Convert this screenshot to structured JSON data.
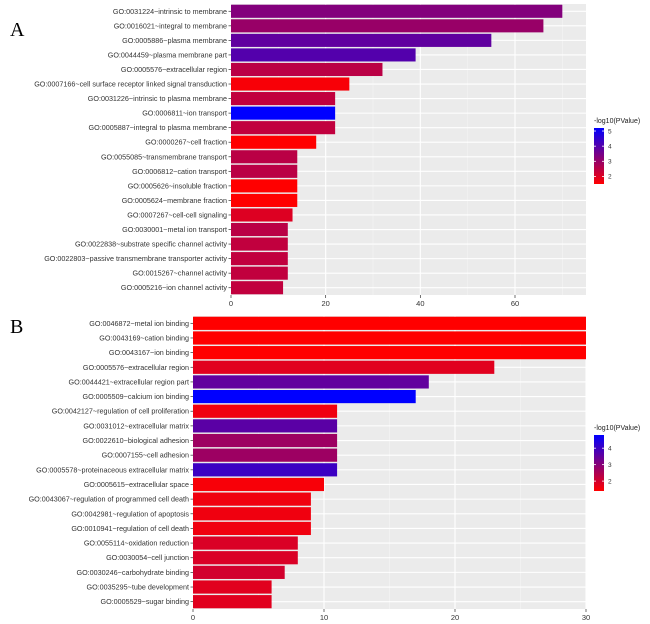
{
  "chart_data": [
    {
      "type": "bar",
      "orientation": "horizontal",
      "panel_label": "A",
      "xlim": [
        0,
        75
      ],
      "x_ticks": [
        0,
        20,
        40,
        60
      ],
      "categories": [
        "GO:0031224~intrinsic to membrane",
        "GO:0016021~integral to membrane",
        "GO:0005886~plasma membrane",
        "GO:0044459~plasma membrane part",
        "GO:0005576~extracellular region",
        "GO:0007166~cell surface receptor linked signal transduction",
        "GO:0031226~intrinsic to plasma membrane",
        "GO:0006811~ion transport",
        "GO:0005887~integral to plasma membrane",
        "GO:0000267~cell fraction",
        "GO:0055085~transmembrane transport",
        "GO:0006812~cation transport",
        "GO:0005626~insoluble fraction",
        "GO:0005624~membrane fraction",
        "GO:0007267~cell-cell signaling",
        "GO:0030001~metal ion transport",
        "GO:0022838~substrate specific channel activity",
        "GO:0022803~passive transmembrane transporter activity",
        "GO:0015267~channel activity",
        "GO:0005216~ion channel activity"
      ],
      "values": [
        70,
        66,
        55,
        39,
        32,
        25,
        22,
        22,
        22,
        18,
        14,
        14,
        14,
        14,
        13,
        12,
        12,
        12,
        12,
        11
      ],
      "color_values": [
        3.3,
        3.0,
        3.8,
        4.0,
        2.5,
        1.6,
        2.4,
        5.2,
        2.4,
        1.5,
        2.5,
        2.5,
        1.5,
        1.5,
        2.0,
        2.5,
        2.4,
        2.4,
        2.4,
        2.4
      ],
      "color_scale": {
        "low": "#ff0000",
        "high": "#0000ff",
        "min": 1.5,
        "max": 5.2
      },
      "legend": {
        "title": "-log10(PValue)",
        "ticks": [
          5,
          4,
          3,
          2
        ]
      }
    },
    {
      "type": "bar",
      "orientation": "horizontal",
      "panel_label": "B",
      "xlim": [
        0,
        30
      ],
      "x_ticks": [
        0,
        10,
        20,
        30
      ],
      "categories": [
        "GO:0046872~metal ion binding",
        "GO:0043169~cation binding",
        "GO:0043167~ion binding",
        "GO:0005576~extracellular region",
        "GO:0044421~extracellular region part",
        "GO:0005509~calcium ion binding",
        "GO:0042127~regulation of cell proliferation",
        "GO:0031012~extracellular matrix",
        "GO:0022610~biological adhesion",
        "GO:0007155~cell adhesion",
        "GO:0005578~proteinaceous extracellular matrix",
        "GO:0005615~extracellular space",
        "GO:0043067~regulation of programmed cell death",
        "GO:0042981~regulation of apoptosis",
        "GO:0010941~regulation of cell death",
        "GO:0055114~oxidation reduction",
        "GO:0030054~cell junction",
        "GO:0030246~carbohydrate binding",
        "GO:0035295~tube development",
        "GO:0005529~sugar binding"
      ],
      "values": [
        30,
        30,
        30,
        23,
        18,
        17,
        11,
        11,
        11,
        11,
        11,
        10,
        9,
        9,
        9,
        8,
        8,
        7,
        6,
        6
      ],
      "color_values": [
        1.4,
        1.4,
        1.4,
        1.8,
        3.5,
        4.8,
        1.6,
        3.6,
        2.7,
        2.7,
        4.0,
        1.5,
        1.6,
        1.6,
        1.6,
        1.9,
        1.9,
        2.0,
        1.8,
        1.8
      ],
      "color_scale": {
        "low": "#ff0000",
        "high": "#0000ff",
        "min": 1.4,
        "max": 4.8
      },
      "legend": {
        "title": "-log10(PValue)",
        "ticks": [
          4,
          3,
          2
        ]
      }
    }
  ]
}
